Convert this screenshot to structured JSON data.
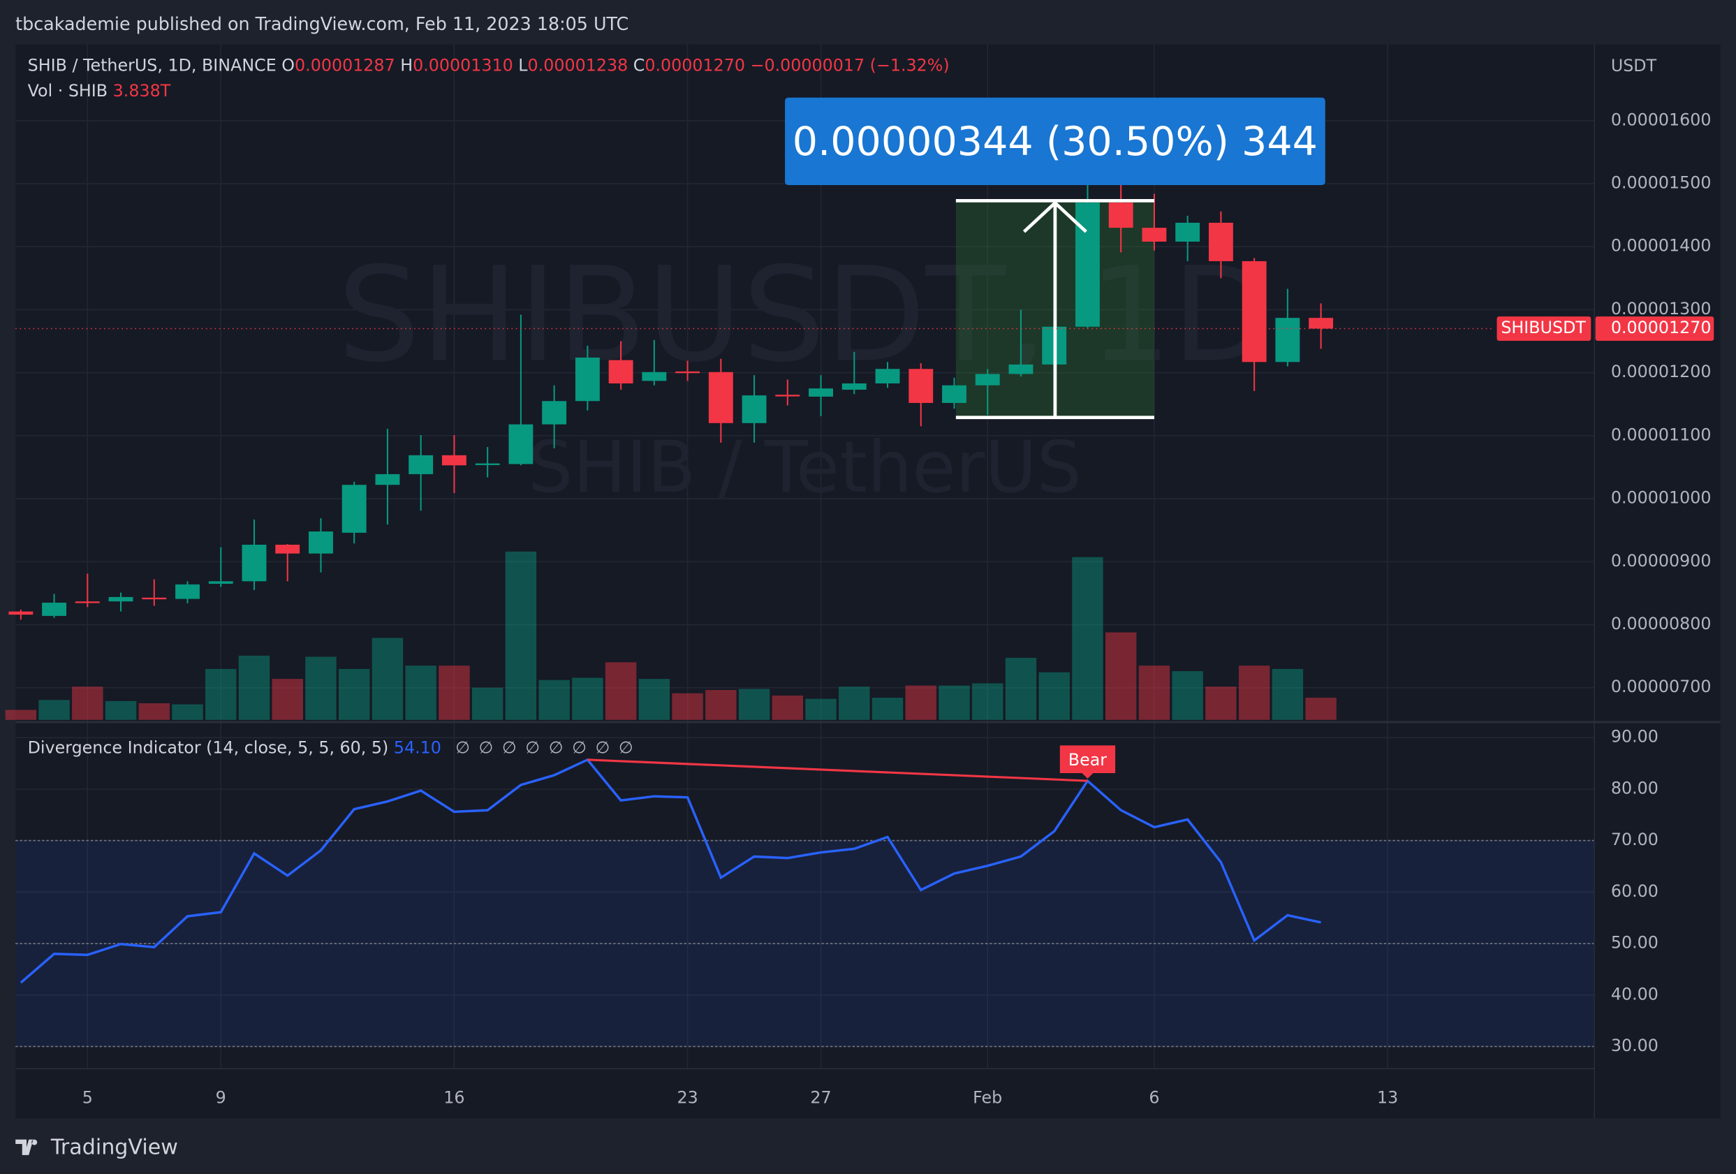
{
  "header": {
    "published": "tbcakademie published on TradingView.com, Feb 11, 2023 18:05 UTC",
    "logo": "TradingView"
  },
  "chart_data": {
    "type": "candlestick",
    "watermark": "SHIBUSDT, 1D",
    "watermark_sub": "SHIB / TetherUS",
    "currency": "USDT",
    "symbol_label": "SHIBUSDT",
    "last_price_label": "0.00001270",
    "legend": {
      "symbol": "SHIB / TetherUS, 1D, BINANCE",
      "o": "O",
      "open": "0.00001287",
      "h": "H",
      "high": "0.00001310",
      "l": "L",
      "low": "0.00001238",
      "c": "C",
      "close": "0.00001270",
      "change": "−0.00000017 (−1.32%)",
      "vol": "Vol · SHIB",
      "vol_value": "3.838T"
    },
    "x": [
      0,
      1,
      2,
      3,
      4,
      5,
      6,
      7,
      8,
      9,
      10,
      11,
      12,
      13,
      14,
      15,
      16,
      17,
      18,
      19,
      20,
      21,
      22,
      23,
      24,
      25,
      26,
      27,
      28,
      29,
      30,
      31,
      32,
      33,
      34,
      35,
      36,
      37,
      38,
      39
    ],
    "xlim": [
      -0.16,
      47.2
    ],
    "xticks": [
      {
        "value": 2,
        "label": "5"
      },
      {
        "value": 6,
        "label": "9"
      },
      {
        "value": 13,
        "label": "16"
      },
      {
        "value": 20,
        "label": "23"
      },
      {
        "value": 24,
        "label": "27"
      },
      {
        "value": 29,
        "label": "Feb"
      },
      {
        "value": 34,
        "label": "6"
      },
      {
        "value": 41,
        "label": "13"
      }
    ],
    "open": [
      8.21e-06,
      8.14e-06,
      8.37e-06,
      8.37e-06,
      8.43e-06,
      8.41e-06,
      8.65e-06,
      8.69e-06,
      9.27e-06,
      9.13e-06,
      9.46e-06,
      1.022e-05,
      1.039e-05,
      1.069e-05,
      1.054e-05,
      1.055e-05,
      1.118e-05,
      1.155e-05,
      1.22e-05,
      1.187e-05,
      1.202e-05,
      1.201e-05,
      1.12e-05,
      1.165e-05,
      1.162e-05,
      1.173e-05,
      1.183e-05,
      1.206e-05,
      1.152e-05,
      1.18e-05,
      1.198e-05,
      1.213e-05,
      1.273e-05,
      1.47e-05,
      1.43e-05,
      1.408e-05,
      1.438e-05,
      1.377e-05,
      1.217e-05,
      1.287e-05
    ],
    "high": [
      8.24e-06,
      8.49e-06,
      8.81e-06,
      8.51e-06,
      8.72e-06,
      8.69e-06,
      9.23e-06,
      9.67e-06,
      9.28e-06,
      9.69e-06,
      1.027e-05,
      1.111e-05,
      1.101e-05,
      1.101e-05,
      1.082e-05,
      1.292e-05,
      1.18e-05,
      1.243e-05,
      1.25e-05,
      1.252e-05,
      1.219e-05,
      1.222e-05,
      1.196e-05,
      1.189e-05,
      1.196e-05,
      1.233e-05,
      1.217e-05,
      1.215e-05,
      1.192e-05,
      1.206e-05,
      1.3e-05,
      1.285e-05,
      1.549e-05,
      1.537e-05,
      1.484e-05,
      1.449e-05,
      1.456e-05,
      1.382e-05,
      1.333e-05,
      1.31e-05
    ],
    "low": [
      8.08e-06,
      8.11e-06,
      8.28e-06,
      8.21e-06,
      8.3e-06,
      8.34e-06,
      8.6e-06,
      8.55e-06,
      8.69e-06,
      8.83e-06,
      9.29e-06,
      9.59e-06,
      9.81e-06,
      1.009e-05,
      1.034e-05,
      1.053e-05,
      1.08e-05,
      1.14e-05,
      1.173e-05,
      1.18e-05,
      1.187e-05,
      1.089e-05,
      1.089e-05,
      1.148e-05,
      1.131e-05,
      1.166e-05,
      1.176e-05,
      1.115e-05,
      1.143e-05,
      1.133e-05,
      1.194e-05,
      1.212e-05,
      1.271e-05,
      1.391e-05,
      1.394e-05,
      1.377e-05,
      1.35e-05,
      1.171e-05,
      1.21e-05,
      1.238e-05
    ],
    "close": [
      8.16e-06,
      8.35e-06,
      8.36e-06,
      8.44e-06,
      8.42e-06,
      8.64e-06,
      8.69e-06,
      9.27e-06,
      9.13e-06,
      9.48e-06,
      1.022e-05,
      1.039e-05,
      1.069e-05,
      1.053e-05,
      1.056e-05,
      1.118e-05,
      1.155e-05,
      1.224e-05,
      1.183e-05,
      1.201e-05,
      1.201e-05,
      1.12e-05,
      1.164e-05,
      1.164e-05,
      1.175e-05,
      1.183e-05,
      1.206e-05,
      1.152e-05,
      1.18e-05,
      1.198e-05,
      1.213e-05,
      1.273e-05,
      1.47e-05,
      1.43e-05,
      1.408e-05,
      1.438e-05,
      1.377e-05,
      1.217e-05,
      1.287e-05,
      1.27e-05
    ],
    "volume": [
      1.73,
      3.45,
      5.76,
      3.26,
      2.88,
      2.69,
      8.83,
      11.13,
      7.1,
      10.94,
      8.83,
      14.2,
      9.4,
      9.4,
      5.57,
      29.17,
      6.91,
      7.29,
      9.98,
      7.1,
      4.61,
      5.18,
      5.37,
      4.22,
      3.65,
      5.76,
      3.84,
      5.95,
      5.95,
      6.33,
      10.75,
      8.25,
      28.21,
      15.16,
      9.4,
      8.44,
      5.76,
      9.4,
      8.83,
      3.838
    ],
    "up_color": "#089981",
    "down_color": "#f23645",
    "ylim": [
      6.49e-06,
      1.721e-05
    ],
    "yticks": [
      {
        "value": 7e-06,
        "label": "0.00000700"
      },
      {
        "value": 8e-06,
        "label": "0.00000800"
      },
      {
        "value": 9e-06,
        "label": "0.00000900"
      },
      {
        "value": 1e-05,
        "label": "0.00001000"
      },
      {
        "value": 1.1e-05,
        "label": "0.00001100"
      },
      {
        "value": 1.2e-05,
        "label": "0.00001200"
      },
      {
        "value": 1.3e-05,
        "label": "0.00001300"
      },
      {
        "value": 1.4e-05,
        "label": "0.00001400"
      },
      {
        "value": 1.5e-05,
        "label": "0.00001500"
      },
      {
        "value": 1.6e-05,
        "label": "0.00001600"
      }
    ],
    "measure": {
      "from": 1.129e-05,
      "to": 1.473e-05,
      "x_from": 28.05,
      "x_to": 34,
      "label": "0.00000344 (30.50%) 344",
      "color": "#1976d2"
    },
    "indicator": {
      "type": "line",
      "title": "Divergence Indicator (14, close, 5, 5, 60, 5)",
      "value_label": "54.10",
      "na_labels": [
        "∅",
        "∅",
        "∅",
        "∅",
        "∅",
        "∅",
        "∅",
        "∅"
      ],
      "color": "#2962ff",
      "values": [
        42.4,
        48.0,
        47.8,
        49.9,
        49.3,
        55.3,
        56.1,
        67.5,
        63.2,
        68.1,
        76.1,
        77.6,
        79.7,
        75.6,
        75.9,
        80.8,
        82.7,
        85.7,
        77.8,
        78.6,
        78.4,
        62.8,
        66.9,
        66.6,
        67.7,
        68.4,
        70.7,
        60.4,
        63.6,
        65.1,
        66.9,
        71.8,
        81.6,
        75.9,
        72.6,
        74.1,
        65.8,
        50.6,
        55.5,
        54.1
      ],
      "ylim": [
        25.7,
        92.8
      ],
      "yticks": [
        {
          "value": 30,
          "label": "30.00"
        },
        {
          "value": 40,
          "label": "40.00"
        },
        {
          "value": 50,
          "label": "50.00"
        },
        {
          "value": 60,
          "label": "60.00"
        },
        {
          "value": 70,
          "label": "70.00"
        },
        {
          "value": 80,
          "label": "80.00"
        },
        {
          "value": 90,
          "label": "90.00"
        }
      ],
      "hlines": [
        30,
        50,
        70
      ],
      "band": [
        30,
        70
      ],
      "divergence": {
        "from": 17,
        "to": 32,
        "label": "Bear",
        "color": "#f23645"
      }
    }
  }
}
